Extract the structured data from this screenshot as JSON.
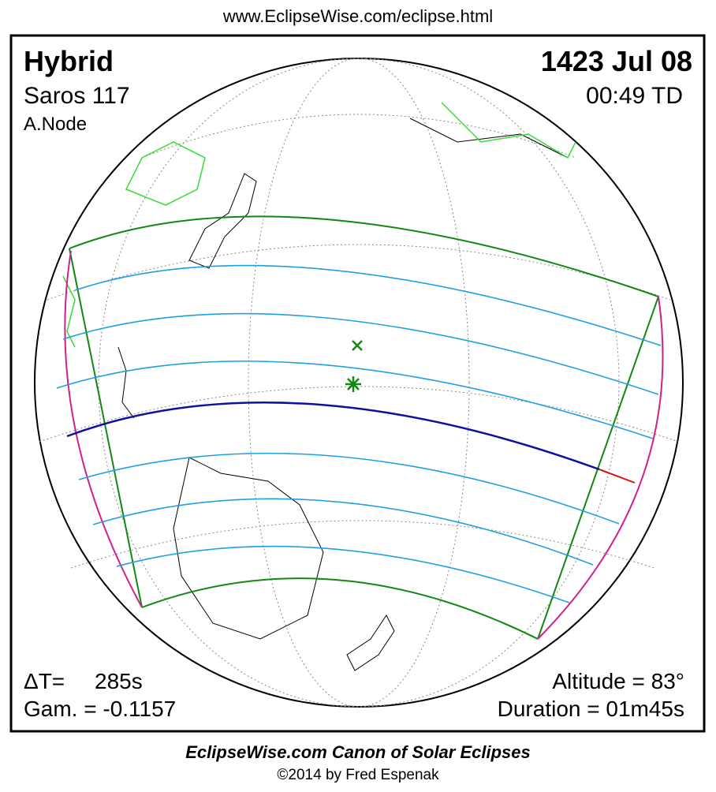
{
  "header": {
    "url": "www.EclipseWise.com/eclipse.html"
  },
  "panel": {
    "eclipse_type": "Hybrid",
    "date": "1423 Jul 08",
    "saros": "Saros 117",
    "time": "00:49 TD",
    "node": "A.Node",
    "delta_t_label": "ΔT=",
    "delta_t": "285s",
    "gamma": "Gam. = -0.1157",
    "altitude": "Altitude = 83°",
    "duration": "Duration = 01m45s"
  },
  "footer": {
    "title": "EclipseWise.com Canon of Solar Eclipses",
    "copyright": "©2014 by Fred Espenak"
  }
}
